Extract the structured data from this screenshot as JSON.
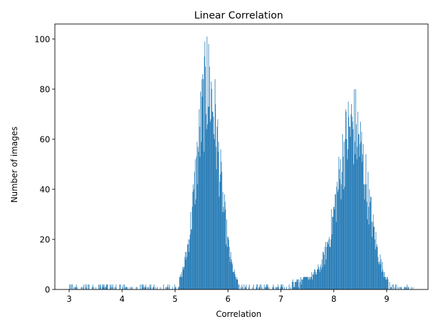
{
  "chart_data": {
    "type": "bar",
    "title": "Linear Correlation",
    "xlabel": "Correlation",
    "ylabel": "Number of images",
    "xlim": [
      2.73,
      9.78
    ],
    "ylim": [
      0,
      106
    ],
    "xticks": [
      "3",
      "4",
      "5",
      "6",
      "7",
      "8",
      "9"
    ],
    "yticks": [
      "0",
      "20",
      "40",
      "60",
      "80",
      "100"
    ],
    "bar_color": "#1f77b4",
    "grid": false,
    "legend": "none",
    "bin_width": 0.01,
    "histogram": {
      "x_start": 3.0,
      "x_end": 9.5,
      "description_of_shape": "bimodal",
      "components": [
        {
          "center": 5.62,
          "sigma": 0.22,
          "peak": 80
        },
        {
          "center": 8.35,
          "sigma": 0.28,
          "peak": 65
        },
        {
          "center": 7.5,
          "sigma": 0.35,
          "peak": 4
        }
      ],
      "max_bin_value": 101,
      "max_bin_x": 5.6
    }
  }
}
